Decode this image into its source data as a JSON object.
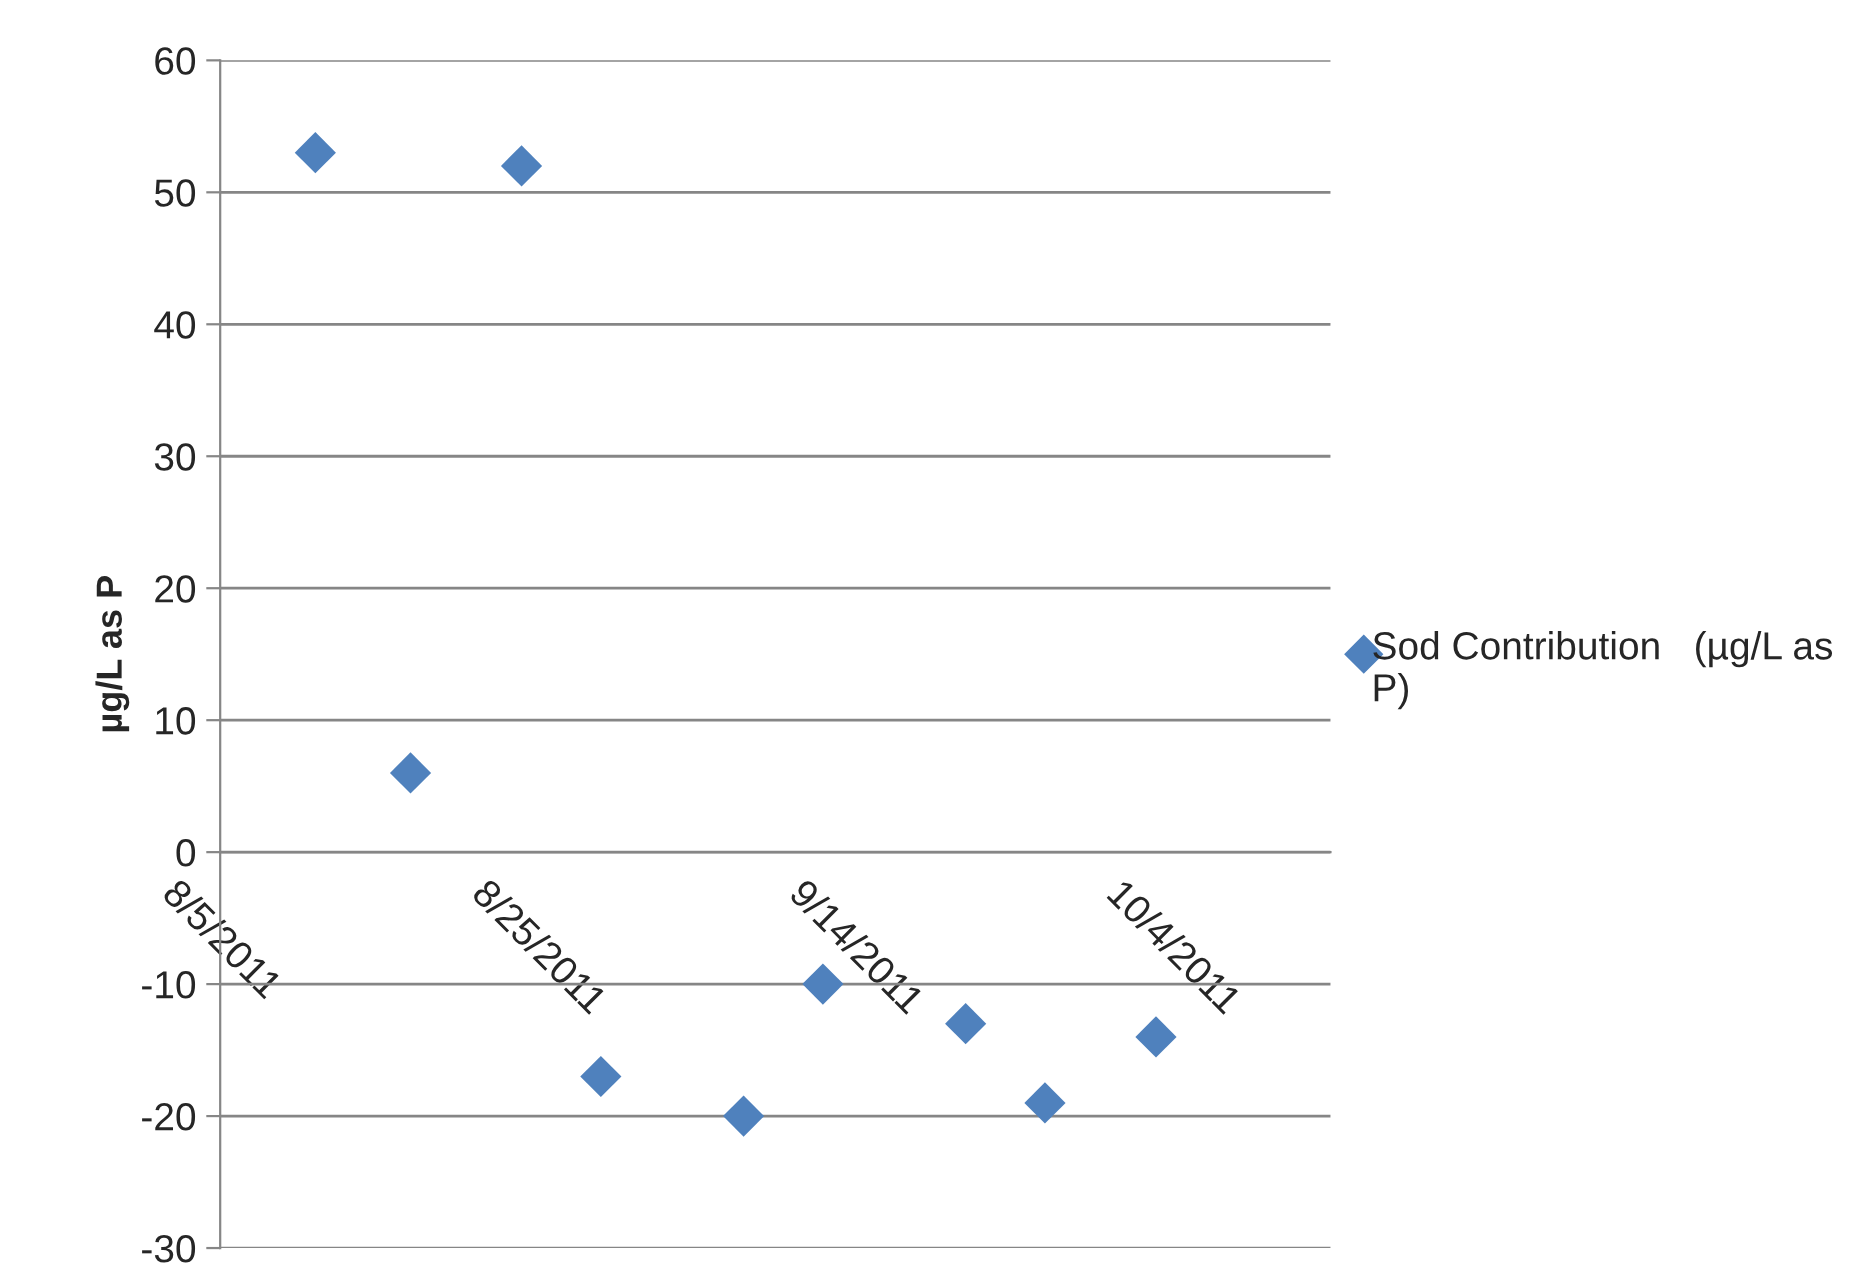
{
  "chart_data": {
    "type": "scatter",
    "ylabel": "µg/L as P",
    "x": [
      "2011-08-11",
      "2011-08-17",
      "2011-08-24",
      "2011-08-29",
      "2011-09-07",
      "2011-09-12",
      "2011-09-21",
      "2011-09-26",
      "2011-10-03"
    ],
    "series": [
      {
        "name": "Sod Contribution   (µg/L as P)",
        "color": "#4f81bd",
        "values": [
          53,
          6,
          52,
          -17,
          -20,
          -10,
          -13,
          -19,
          -14
        ]
      }
    ],
    "xlim": [
      "2011-08-05",
      "2011-10-14"
    ],
    "xticks": [
      {
        "value": "2011-08-05",
        "label": "8/5/2011"
      },
      {
        "value": "2011-08-25",
        "label": "8/25/2011"
      },
      {
        "value": "2011-09-14",
        "label": "9/14/2011"
      },
      {
        "value": "2011-10-04",
        "label": "10/4/2011"
      }
    ],
    "ylim": [
      -30,
      60
    ],
    "yticks": [
      -30,
      -20,
      -10,
      0,
      10,
      20,
      30,
      40,
      50,
      60
    ],
    "grid": "y",
    "legend": "right",
    "marker": "diamond"
  }
}
